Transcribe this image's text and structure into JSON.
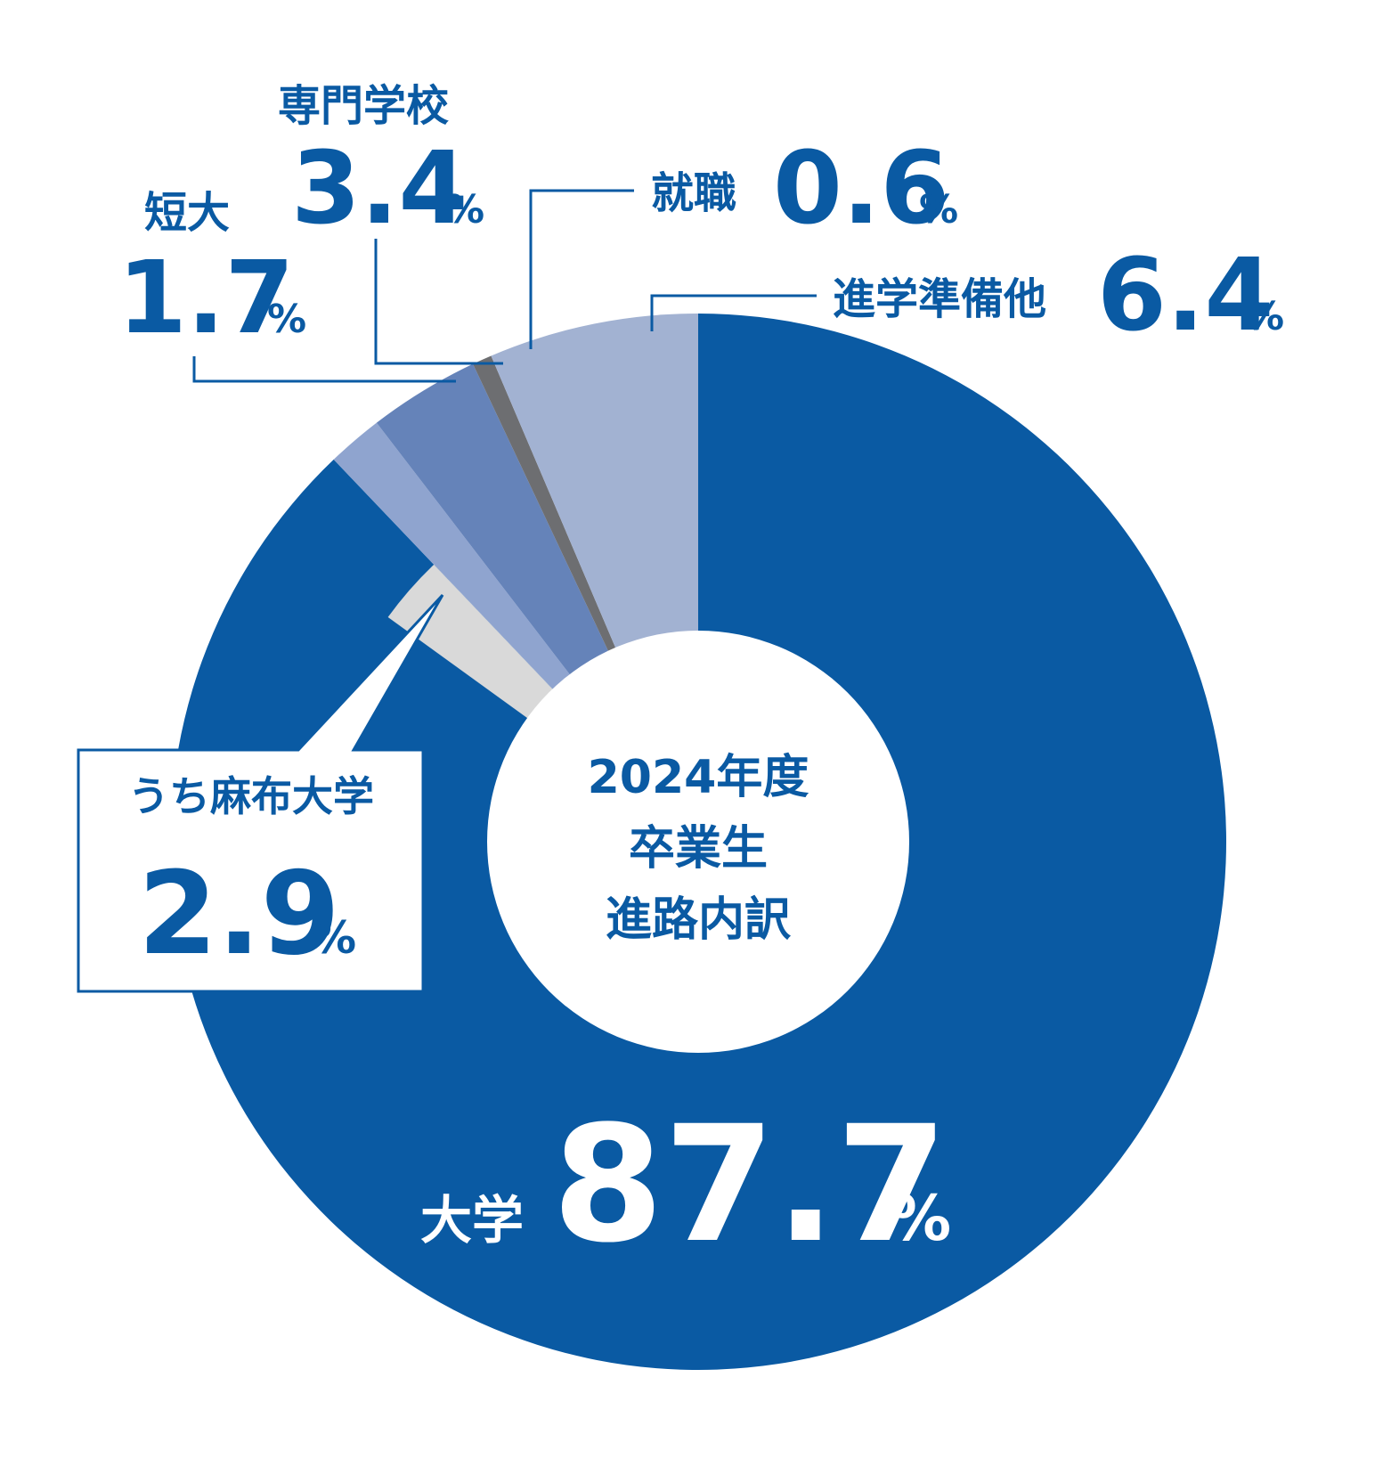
{
  "chart_data": {
    "type": "pie",
    "center_label": [
      "2024年度",
      "卒業生",
      "進路内訳"
    ],
    "slices": [
      {
        "label": "大学",
        "value": 87.7,
        "display": "87.7",
        "color": "#0a5aa3"
      },
      {
        "label": "うち麻布大学",
        "value": 2.9,
        "display": "2.9",
        "color": "#d9d9d9",
        "subset_of": "大学"
      },
      {
        "label": "短大",
        "value": 1.7,
        "display": "1.7",
        "color": "#8fa4cf"
      },
      {
        "label": "専門学校",
        "value": 3.4,
        "display": "3.4",
        "color": "#6583b9"
      },
      {
        "label": "就職",
        "value": 0.6,
        "display": "0.6",
        "color": "#6d6e71"
      },
      {
        "label": "進学準備他",
        "value": 6.4,
        "display": "6.4",
        "color": "#a2b2d2"
      }
    ],
    "unit": "%"
  }
}
